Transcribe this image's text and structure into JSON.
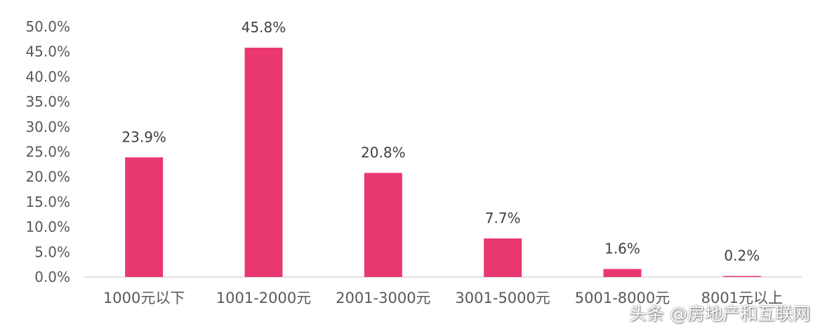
{
  "chart_data": {
    "type": "bar",
    "categories": [
      "1000元以下",
      "1001-2000元",
      "2001-3000元",
      "3001-5000元",
      "5001-8000元",
      "8001元以上"
    ],
    "values": [
      23.9,
      45.8,
      20.8,
      7.7,
      1.6,
      0.2
    ],
    "data_labels": [
      "23.9%",
      "45.8%",
      "20.8%",
      "7.7%",
      "1.6%",
      "0.2%"
    ],
    "title": "",
    "xlabel": "",
    "ylabel": "",
    "ylim": [
      0,
      50
    ],
    "yticks": [
      0,
      5,
      10,
      15,
      20,
      25,
      30,
      35,
      40,
      45,
      50
    ],
    "ytick_labels": [
      "0.0%",
      "5.0%",
      "10.0%",
      "15.0%",
      "20.0%",
      "25.0%",
      "30.0%",
      "35.0%",
      "40.0%",
      "45.0%",
      "50.0%"
    ],
    "grid": false,
    "legend": "none",
    "bar_color": "#E8386F"
  },
  "watermark": {
    "text": "头条 @房地产和互联网",
    "color": "#ffffff"
  }
}
